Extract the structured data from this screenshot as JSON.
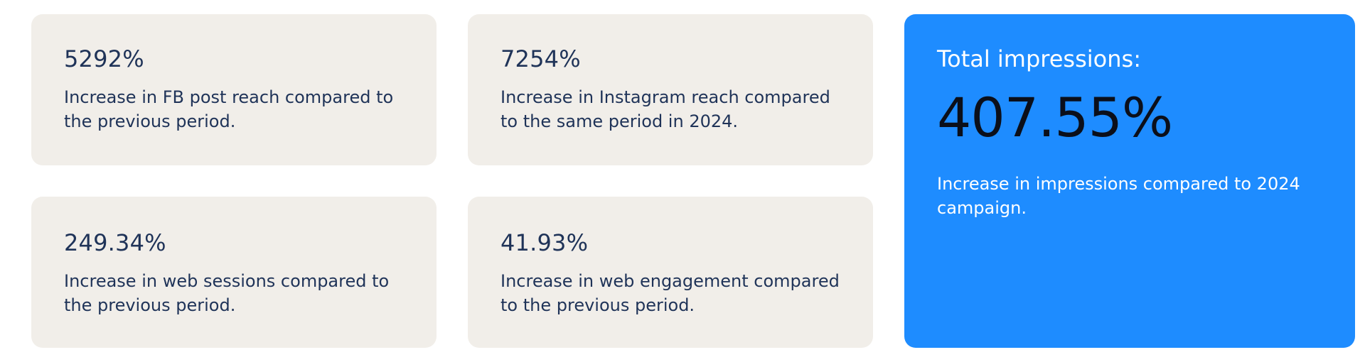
{
  "stats": [
    {
      "value": "5292%",
      "description": "Increase in FB post reach compared to the previous period."
    },
    {
      "value": "7254%",
      "description": "Increase in Instagram reach compared to the same period in 2024."
    },
    {
      "value": "249.34%",
      "description": "Increase in web sessions compared to the previous period."
    },
    {
      "value": "41.93%",
      "description": "Increase in web engagement compared to the previous period."
    }
  ],
  "highlight": {
    "label": "Total impressions:",
    "value": "407.55%",
    "description": "Increase in impressions compared to 2024 campaign."
  },
  "colors": {
    "card_background": "#f1eee9",
    "card_text": "#1f3358",
    "highlight_background": "#1e8cff",
    "highlight_value": "#0b0f1a",
    "highlight_text": "#ffffff"
  }
}
